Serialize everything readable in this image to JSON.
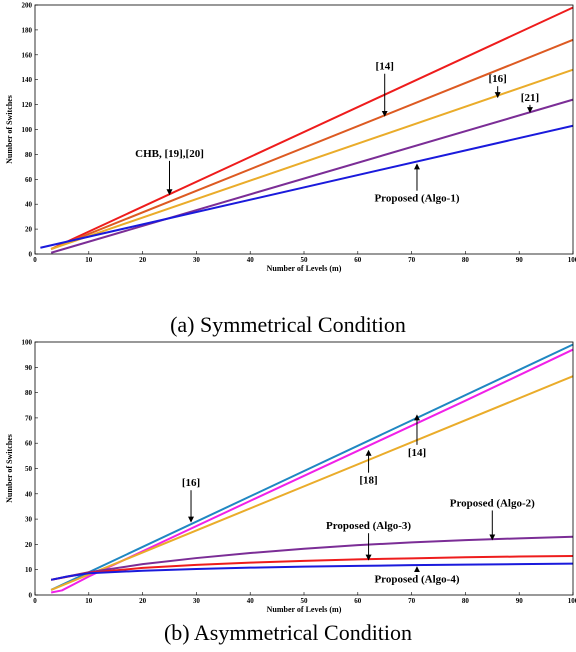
{
  "chart_data": [
    {
      "type": "line",
      "caption": "(a) Symmetrical Condition",
      "xlabel": "Number of Levels (m)",
      "ylabel": "Number of Switches",
      "xlim": [
        0,
        100
      ],
      "ylim": [
        0,
        200
      ],
      "xticks": [
        0,
        10,
        20,
        30,
        40,
        50,
        60,
        70,
        80,
        90,
        100
      ],
      "yticks": [
        0,
        20,
        40,
        60,
        80,
        100,
        120,
        140,
        160,
        180,
        200
      ],
      "grid": false,
      "series": [
        {
          "color": "#ee1c1c",
          "points": [
            [
              3,
              4
            ],
            [
              100,
              198
            ]
          ]
        },
        {
          "color": "#dd5a22",
          "points": [
            [
              3,
              4
            ],
            [
              100,
              172
            ]
          ]
        },
        {
          "color": "#eaac2a",
          "points": [
            [
              3,
              4
            ],
            [
              100,
              148
            ]
          ]
        },
        {
          "color": "#7b2d96",
          "points": [
            [
              3,
              1
            ],
            [
              100,
              124
            ]
          ]
        },
        {
          "color": "#1a1adc",
          "points": [
            [
              1,
              5
            ],
            [
              100,
              103
            ]
          ]
        }
      ],
      "annotations": [
        {
          "text": "CHB, [19],[20]",
          "x": 25,
          "y": 78,
          "arrow_to": [
            25,
            48
          ]
        },
        {
          "text": "[14]",
          "x": 65,
          "y": 148,
          "arrow_to": [
            65,
            111
          ]
        },
        {
          "text": "[16]",
          "x": 86,
          "y": 138,
          "arrow_to": [
            86,
            126
          ]
        },
        {
          "text": "[21]",
          "x": 92,
          "y": 123,
          "arrow_to": [
            92,
            114
          ]
        },
        {
          "text": "Proposed (Algo-1)",
          "x": 71,
          "y": 42,
          "arrow_to": [
            71,
            72
          ]
        }
      ]
    },
    {
      "type": "line",
      "caption": "(b) Asymmetrical Condition",
      "xlabel": "Number of Levels (m)",
      "ylabel": "Number of Switches",
      "xlim": [
        0,
        100
      ],
      "ylim": [
        0,
        100
      ],
      "xticks": [
        0,
        10,
        20,
        30,
        40,
        50,
        60,
        70,
        80,
        90,
        100
      ],
      "yticks": [
        0,
        10,
        20,
        30,
        40,
        50,
        60,
        70,
        80,
        90,
        100
      ],
      "grid": false,
      "series": [
        {
          "color": "#1f87c2",
          "points": [
            [
              3,
              2
            ],
            [
              100,
              99
            ]
          ]
        },
        {
          "color": "#f020e8",
          "points": [
            [
              3,
              1
            ],
            [
              5,
              1.8
            ],
            [
              7,
              4
            ],
            [
              10,
              7.3
            ],
            [
              20,
              17.3
            ],
            [
              40,
              37.2
            ],
            [
              60,
              57
            ],
            [
              80,
              76.8
            ],
            [
              100,
              97
            ]
          ]
        },
        {
          "color": "#eaac2a",
          "points": [
            [
              3,
              2
            ],
            [
              100,
              86.5
            ]
          ]
        },
        {
          "color": "#7b2d96",
          "points": [
            [
              3,
              6
            ],
            [
              6,
              7.3
            ],
            [
              10,
              9
            ],
            [
              20,
              12.2
            ],
            [
              30,
              14.6
            ],
            [
              40,
              16.6
            ],
            [
              50,
              18.3
            ],
            [
              60,
              19.7
            ],
            [
              70,
              20.8
            ],
            [
              80,
              21.7
            ],
            [
              90,
              22.4
            ],
            [
              100,
              23
            ]
          ]
        },
        {
          "color": "#ee1c1c",
          "points": [
            [
              3,
              6
            ],
            [
              6,
              7.2
            ],
            [
              10,
              8.8
            ],
            [
              20,
              10.7
            ],
            [
              30,
              11.9
            ],
            [
              40,
              12.8
            ],
            [
              50,
              13.5
            ],
            [
              60,
              14.1
            ],
            [
              70,
              14.5
            ],
            [
              80,
              14.9
            ],
            [
              90,
              15.2
            ],
            [
              100,
              15.4
            ]
          ]
        },
        {
          "color": "#1a1adc",
          "points": [
            [
              3,
              6
            ],
            [
              6,
              7.3
            ],
            [
              10,
              8.6
            ],
            [
              20,
              9.6
            ],
            [
              30,
              10.3
            ],
            [
              40,
              10.8
            ],
            [
              50,
              11.2
            ],
            [
              60,
              11.5
            ],
            [
              70,
              11.8
            ],
            [
              80,
              12
            ],
            [
              90,
              12.2
            ],
            [
              100,
              12.4
            ]
          ]
        }
      ],
      "annotations": [
        {
          "text": "[16]",
          "x": 29,
          "y": 43,
          "arrow_to": [
            29,
            29
          ]
        },
        {
          "text": "[18]",
          "x": 62,
          "y": 44,
          "arrow_to": [
            62,
            57
          ]
        },
        {
          "text": "[14]",
          "x": 71,
          "y": 55,
          "arrow_to": [
            71,
            71
          ]
        },
        {
          "text": "Proposed (Algo-2)",
          "x": 85,
          "y": 35,
          "arrow_to": [
            85,
            22
          ]
        },
        {
          "text": "Proposed (Algo-3)",
          "x": 62,
          "y": 26,
          "arrow_to": [
            62,
            14
          ]
        },
        {
          "text": "Proposed (Algo-4)",
          "x": 71,
          "y": 5,
          "arrow_to": [
            71,
            11
          ]
        }
      ]
    }
  ]
}
